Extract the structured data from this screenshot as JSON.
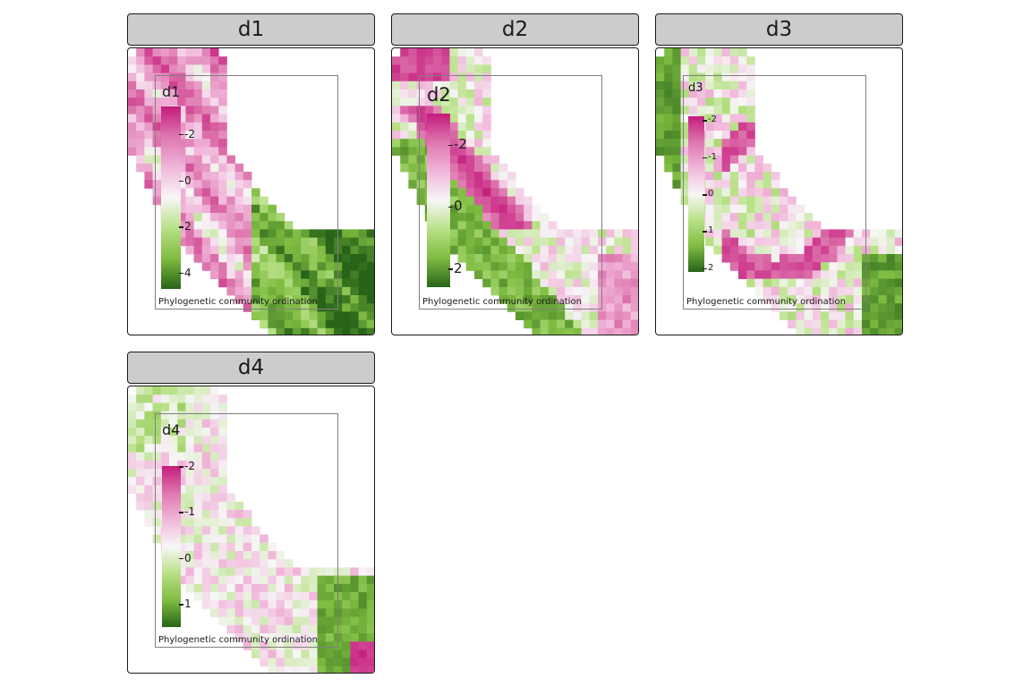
{
  "figure": {
    "facets": [
      {
        "id": "d1",
        "strip_label": "d1",
        "legend_title": "d1",
        "legend_credit": "Phylogenetic community ordination",
        "legend_ticks": [
          "-2",
          "0",
          "2",
          "4"
        ],
        "legend_range": [
          -3.2,
          4.7
        ],
        "scale": "pink-to-green",
        "pattern": "bands"
      },
      {
        "id": "d2",
        "strip_label": "d2",
        "legend_title": "d2",
        "legend_credit": "Phylogenetic community ordination",
        "legend_ticks": [
          "-2",
          "0",
          "2"
        ],
        "legend_range": [
          -3.0,
          2.6
        ],
        "scale": "pink-to-green",
        "pattern": "ridge"
      },
      {
        "id": "d3",
        "strip_label": "d3",
        "legend_title": "d3",
        "legend_credit": "Phylogenetic community ordination",
        "legend_ticks": [
          "-2",
          "-1",
          "0",
          "1",
          "2"
        ],
        "legend_range": [
          -2.1,
          2.1
        ],
        "scale": "pink-to-green",
        "pattern": "arc"
      },
      {
        "id": "d4",
        "strip_label": "d4",
        "legend_title": "d4",
        "legend_credit": "Phylogenetic community ordination",
        "legend_ticks": [
          "-2",
          "-1",
          "0",
          "1"
        ],
        "legend_range": [
          -2.0,
          1.5
        ],
        "scale": "pink-to-green",
        "pattern": "sparse"
      }
    ],
    "colors": {
      "negative": "#c51b7d",
      "mid": "#f7f7f7",
      "positive": "#276419",
      "strip_bg": "#cccccc",
      "frame": "#1a1a1a",
      "legend_frame": "#7f7f7f"
    }
  }
}
